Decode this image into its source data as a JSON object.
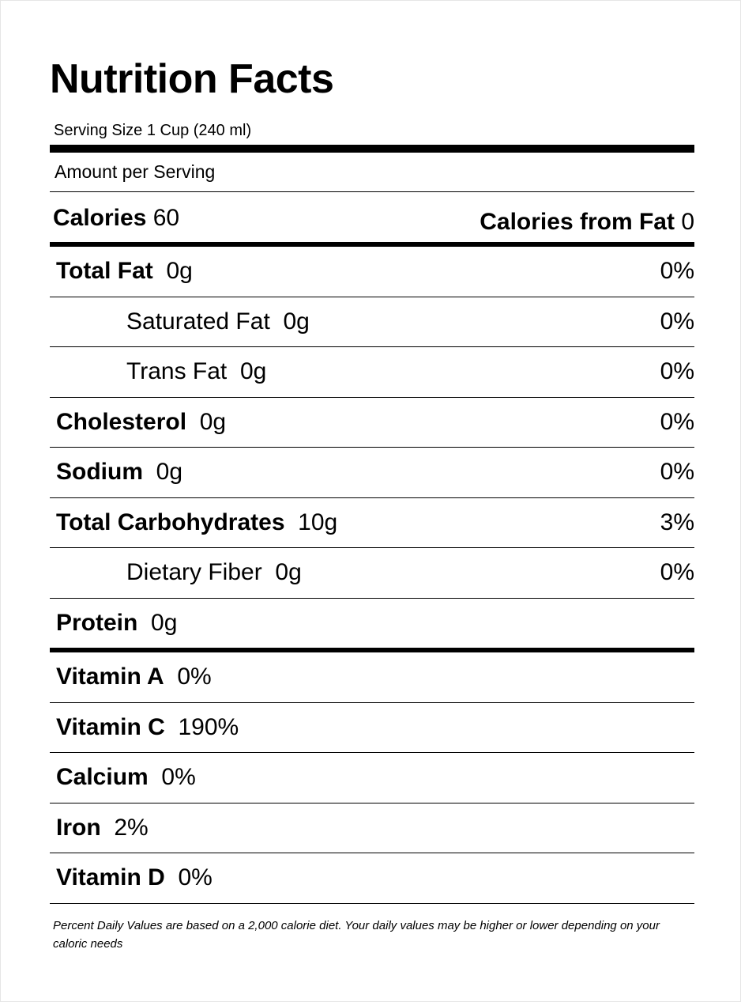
{
  "title": "Nutrition Facts",
  "serving_size": "Serving Size 1 Cup (240 ml)",
  "amount_per_serving": "Amount per Serving",
  "calories": {
    "label": "Calories",
    "value": "60"
  },
  "calories_from_fat": {
    "label": "Calories from Fat",
    "value": "0"
  },
  "nutrients": [
    {
      "name": "Total Fat",
      "amount": "0g",
      "daily_value": "0%",
      "indent": false
    },
    {
      "name": "Saturated Fat",
      "amount": "0g",
      "daily_value": "0%",
      "indent": true
    },
    {
      "name": "Trans Fat",
      "amount": "0g",
      "daily_value": "0%",
      "indent": true
    },
    {
      "name": "Cholesterol",
      "amount": "0g",
      "daily_value": "0%",
      "indent": false
    },
    {
      "name": "Sodium",
      "amount": "0g",
      "daily_value": "0%",
      "indent": false
    },
    {
      "name": "Total Carbohydrates",
      "amount": "10g",
      "daily_value": "3%",
      "indent": false
    },
    {
      "name": "Dietary Fiber",
      "amount": "0g",
      "daily_value": "0%",
      "indent": true
    },
    {
      "name": "Protein",
      "amount": "0g",
      "indent": false
    }
  ],
  "vitamins": [
    {
      "name": "Vitamin A",
      "amount": "0%"
    },
    {
      "name": "Vitamin C",
      "amount": "190%"
    },
    {
      "name": "Calcium",
      "amount": "0%"
    },
    {
      "name": "Iron",
      "amount": "2%"
    },
    {
      "name": "Vitamin D",
      "amount": "0%"
    }
  ],
  "footnote": "Percent Daily Values are based on a 2,000 calorie diet. Your daily values may be higher or lower depending on your caloric needs"
}
